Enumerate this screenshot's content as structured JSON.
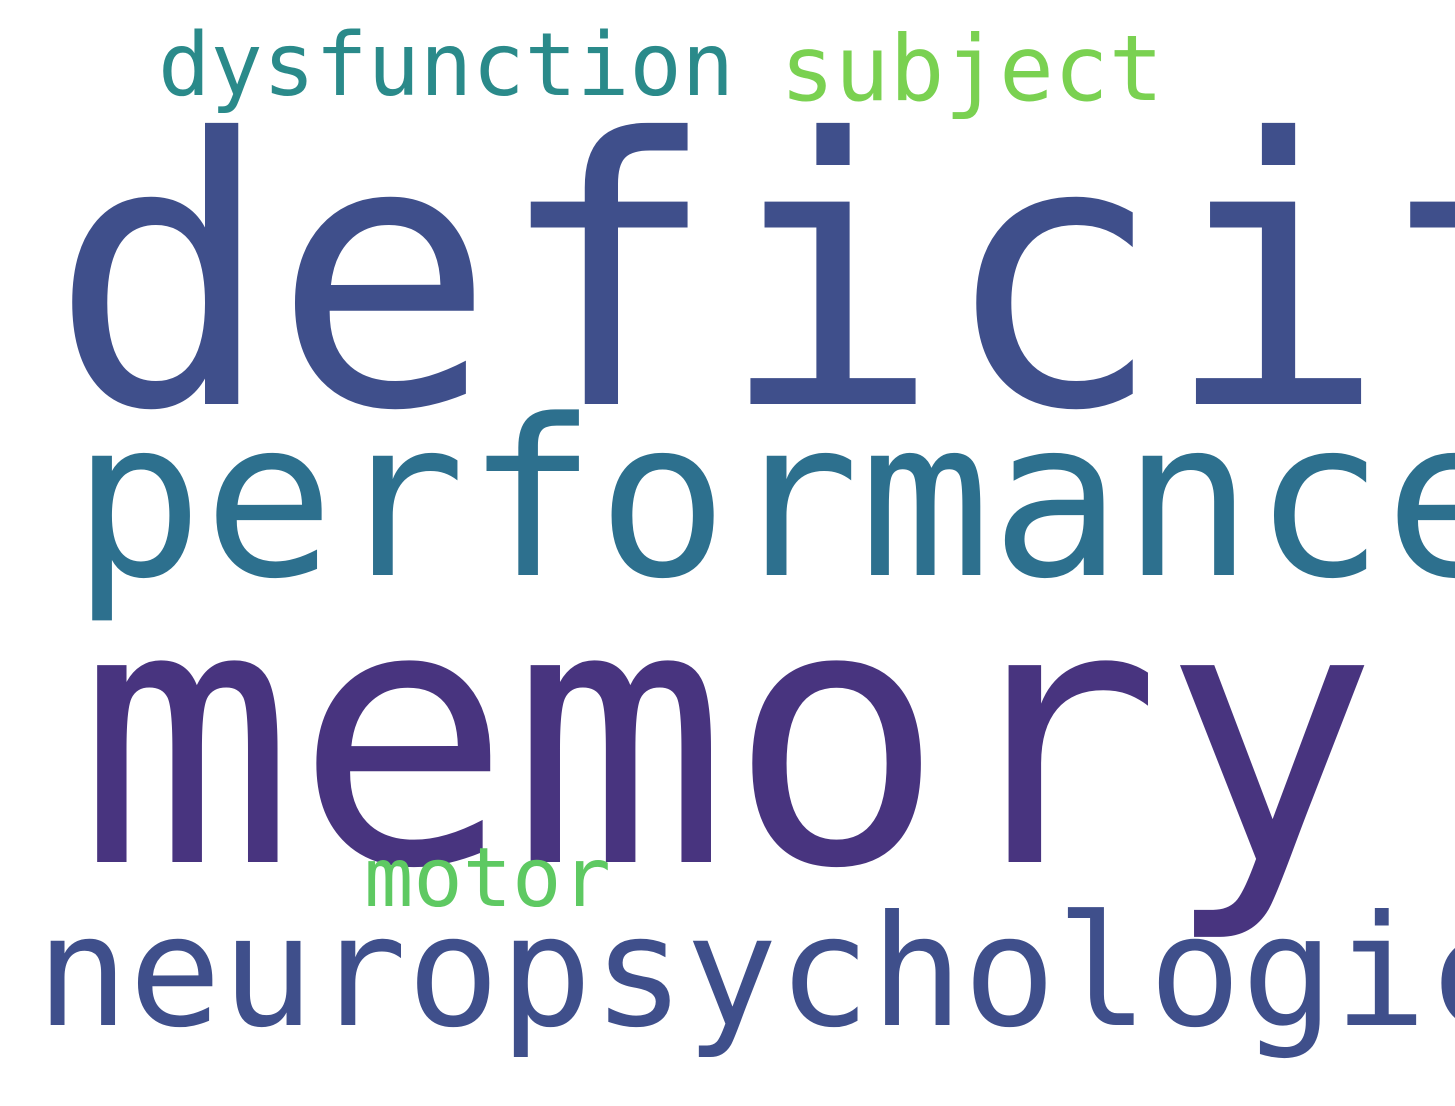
{
  "word_cloud": {
    "background": "#ffffff",
    "words": [
      {
        "key": "deficit",
        "text": "deficit",
        "color": "#3f4f8b"
      },
      {
        "key": "memory",
        "text": "memory",
        "color": "#48347f"
      },
      {
        "key": "performance",
        "text": "performance",
        "color": "#2d708e"
      },
      {
        "key": "neuropsychological",
        "text": "neuropsychological",
        "color": "#3f4f8b"
      },
      {
        "key": "dysfunction",
        "text": "dysfunction",
        "color": "#2a8a8a"
      },
      {
        "key": "subject",
        "text": "subject",
        "color": "#7ad151"
      },
      {
        "key": "motor",
        "text": "motor",
        "color": "#5ec962"
      }
    ]
  }
}
